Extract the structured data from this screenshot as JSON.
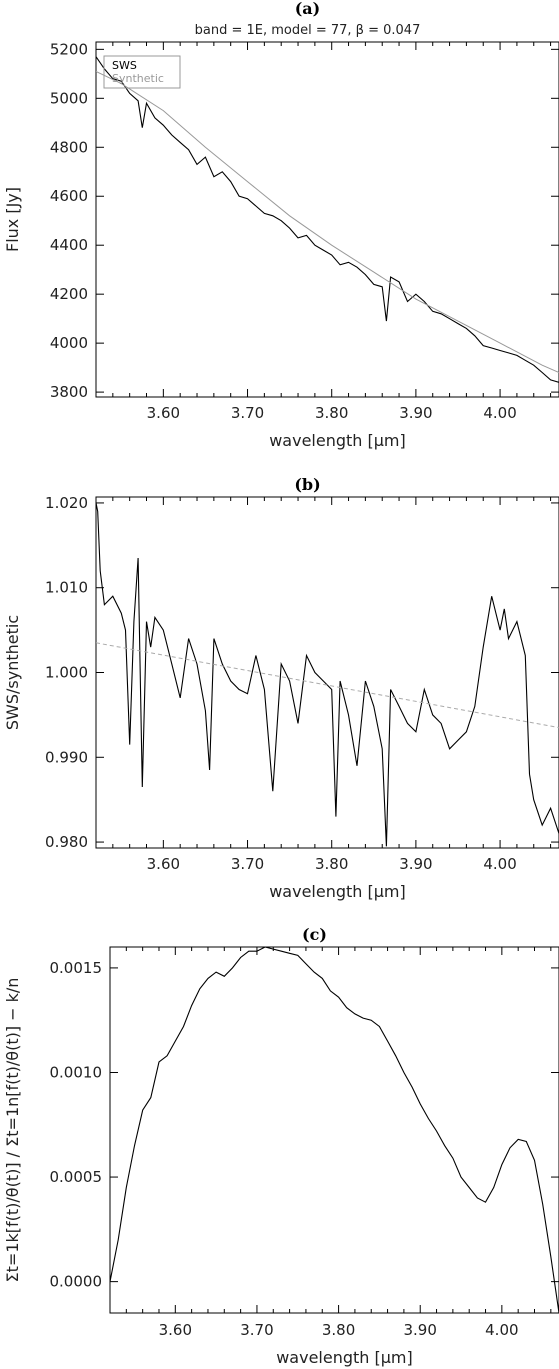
{
  "colors": {
    "sws": "#000000",
    "synthetic": "#999999",
    "trend": "#aaaaaa",
    "frame": "#000000"
  },
  "chart_data": [
    {
      "panel": "(a)",
      "type": "line",
      "subtitle": "band = 1E, model = 77, β = 0.047",
      "xlabel": "wavelength [μm]",
      "ylabel": "Flux [Jy]",
      "xlim": [
        3.52,
        4.07
      ],
      "ylim": [
        3780,
        5230
      ],
      "xticks": [
        "3.60",
        "3.70",
        "3.80",
        "3.90",
        "4.00"
      ],
      "yticks": [
        "3800",
        "4000",
        "4200",
        "4400",
        "4600",
        "4800",
        "5000",
        "5200"
      ],
      "legend": {
        "placement": "top-left",
        "entries": [
          "SWS",
          "Synthetic"
        ]
      },
      "series": [
        {
          "name": "SWS",
          "x": [
            3.52,
            3.53,
            3.54,
            3.55,
            3.56,
            3.57,
            3.575,
            3.58,
            3.59,
            3.6,
            3.61,
            3.62,
            3.63,
            3.64,
            3.65,
            3.66,
            3.67,
            3.68,
            3.69,
            3.7,
            3.71,
            3.72,
            3.73,
            3.74,
            3.75,
            3.76,
            3.77,
            3.78,
            3.79,
            3.8,
            3.81,
            3.82,
            3.83,
            3.84,
            3.85,
            3.86,
            3.865,
            3.87,
            3.88,
            3.89,
            3.9,
            3.91,
            3.92,
            3.93,
            3.94,
            3.95,
            3.96,
            3.97,
            3.98,
            3.99,
            4.0,
            4.01,
            4.02,
            4.03,
            4.04,
            4.05,
            4.06,
            4.07
          ],
          "y": [
            5170,
            5120,
            5080,
            5070,
            5020,
            4990,
            4880,
            4980,
            4920,
            4890,
            4850,
            4820,
            4790,
            4730,
            4760,
            4680,
            4700,
            4660,
            4600,
            4590,
            4560,
            4530,
            4520,
            4500,
            4470,
            4430,
            4440,
            4400,
            4380,
            4360,
            4320,
            4330,
            4310,
            4280,
            4240,
            4230,
            4090,
            4270,
            4250,
            4170,
            4200,
            4170,
            4130,
            4120,
            4100,
            4080,
            4060,
            4030,
            3990,
            3980,
            3970,
            3960,
            3950,
            3930,
            3910,
            3880,
            3850,
            3840
          ]
        },
        {
          "name": "Synthetic",
          "x": [
            3.52,
            3.55,
            3.6,
            3.65,
            3.7,
            3.75,
            3.8,
            3.85,
            3.9,
            3.95,
            4.0,
            4.05,
            4.07
          ],
          "y": [
            5110,
            5060,
            4950,
            4800,
            4660,
            4520,
            4400,
            4290,
            4180,
            4090,
            4000,
            3910,
            3880
          ]
        }
      ]
    },
    {
      "panel": "(b)",
      "type": "line",
      "xlabel": "wavelength [μm]",
      "ylabel": "SWS/synthetic",
      "xlim": [
        3.52,
        4.07
      ],
      "ylim": [
        0.9793,
        1.0207
      ],
      "xticks": [
        "3.60",
        "3.70",
        "3.80",
        "3.90",
        "4.00"
      ],
      "yticks": [
        "0.980",
        "0.990",
        "1.000",
        "1.010",
        "1.020"
      ],
      "series": [
        {
          "name": "SWS/synthetic",
          "x": [
            3.52,
            3.522,
            3.525,
            3.53,
            3.54,
            3.55,
            3.555,
            3.56,
            3.565,
            3.57,
            3.575,
            3.58,
            3.585,
            3.59,
            3.6,
            3.61,
            3.62,
            3.63,
            3.64,
            3.65,
            3.655,
            3.66,
            3.67,
            3.68,
            3.69,
            3.7,
            3.71,
            3.72,
            3.73,
            3.74,
            3.75,
            3.76,
            3.77,
            3.78,
            3.79,
            3.8,
            3.805,
            3.81,
            3.82,
            3.83,
            3.84,
            3.85,
            3.86,
            3.865,
            3.87,
            3.88,
            3.89,
            3.9,
            3.91,
            3.92,
            3.93,
            3.94,
            3.95,
            3.96,
            3.97,
            3.98,
            3.99,
            4.0,
            4.005,
            4.01,
            4.02,
            4.03,
            4.035,
            4.04,
            4.05,
            4.06,
            4.07
          ],
          "y": [
            1.02,
            1.019,
            1.012,
            1.008,
            1.009,
            1.007,
            1.005,
            0.9915,
            1.006,
            1.0135,
            0.9865,
            1.006,
            1.003,
            1.0065,
            1.005,
            1.001,
            0.997,
            1.004,
            1.001,
            0.9955,
            0.9885,
            1.004,
            1.001,
            0.999,
            0.998,
            0.9975,
            1.002,
            0.998,
            0.986,
            1.001,
            0.999,
            0.994,
            1.002,
            1.0,
            0.999,
            0.998,
            0.983,
            0.999,
            0.995,
            0.989,
            0.999,
            0.996,
            0.991,
            0.9795,
            0.998,
            0.996,
            0.994,
            0.993,
            0.998,
            0.995,
            0.994,
            0.991,
            0.992,
            0.993,
            0.996,
            1.003,
            1.009,
            1.005,
            1.0075,
            1.004,
            1.006,
            1.002,
            0.988,
            0.985,
            0.982,
            0.984,
            0.981
          ]
        },
        {
          "name": "trend",
          "x": [
            3.52,
            4.07
          ],
          "y": [
            1.0035,
            0.9935
          ]
        }
      ]
    },
    {
      "panel": "(c)",
      "type": "line",
      "xlabel": "wavelength [μm]",
      "ylabel": "Σt=1k[f(t)/θ(t)] / Σt=1n[f(t)/θ(t)] − k/n",
      "xlim": [
        3.52,
        4.07
      ],
      "ylim": [
        -0.00015,
        0.0016
      ],
      "xticks": [
        "3.60",
        "3.70",
        "3.80",
        "3.90",
        "4.00"
      ],
      "yticks": [
        "0.0000",
        "0.0005",
        "0.0010",
        "0.0015"
      ],
      "series": [
        {
          "name": "cumulative",
          "x": [
            3.52,
            3.53,
            3.54,
            3.55,
            3.56,
            3.57,
            3.58,
            3.59,
            3.6,
            3.61,
            3.62,
            3.63,
            3.64,
            3.65,
            3.66,
            3.67,
            3.68,
            3.69,
            3.7,
            3.71,
            3.72,
            3.73,
            3.74,
            3.75,
            3.76,
            3.77,
            3.78,
            3.79,
            3.8,
            3.81,
            3.82,
            3.83,
            3.84,
            3.85,
            3.86,
            3.87,
            3.88,
            3.89,
            3.9,
            3.91,
            3.92,
            3.93,
            3.94,
            3.95,
            3.96,
            3.97,
            3.98,
            3.99,
            4.0,
            4.01,
            4.02,
            4.03,
            4.04,
            4.05,
            4.06,
            4.07
          ],
          "y": [
            0.0,
            0.0002,
            0.00045,
            0.00065,
            0.00082,
            0.00088,
            0.00105,
            0.00108,
            0.00115,
            0.00122,
            0.00132,
            0.0014,
            0.00145,
            0.00148,
            0.00146,
            0.0015,
            0.00155,
            0.00158,
            0.00158,
            0.0016,
            0.00159,
            0.00158,
            0.00157,
            0.00156,
            0.00152,
            0.00148,
            0.00145,
            0.00139,
            0.00136,
            0.00131,
            0.00128,
            0.00126,
            0.00125,
            0.00122,
            0.00115,
            0.00108,
            0.001,
            0.00093,
            0.00085,
            0.00078,
            0.00072,
            0.00065,
            0.00059,
            0.0005,
            0.00045,
            0.0004,
            0.00038,
            0.00045,
            0.00056,
            0.00064,
            0.00068,
            0.00067,
            0.00058,
            0.00037,
            0.00012,
            -0.00015
          ]
        }
      ]
    }
  ]
}
